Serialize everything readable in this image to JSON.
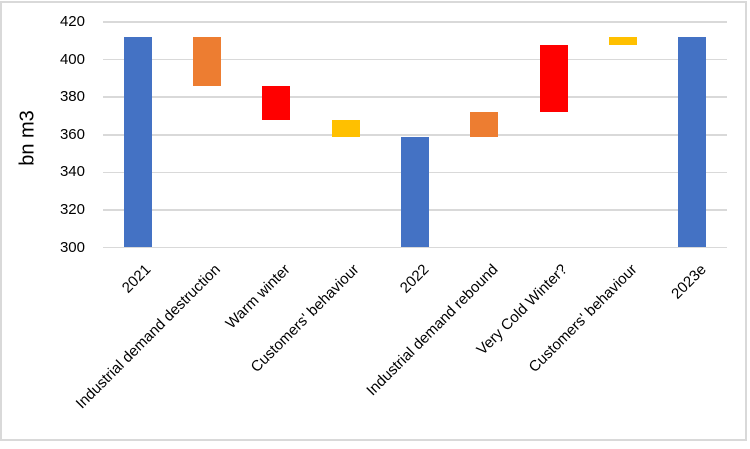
{
  "figure": {
    "background_color": "#FFFFFF",
    "frame_border_color": "#D9D9D9"
  },
  "chart_data": {
    "type": "bar",
    "subtype": "waterfall",
    "title": "",
    "xlabel": "",
    "ylabel": "bn m3",
    "ylim": [
      300,
      420
    ],
    "yticks": [
      300,
      320,
      340,
      360,
      380,
      400,
      420
    ],
    "grid": true,
    "gridline_color": "#D9D9D9",
    "axis_text_color": "#000000",
    "legend": "none",
    "categories": [
      "2021",
      "Industrial demand destruction",
      "Warm winter",
      "Customers' behaviour",
      "2022",
      "Industrial demand rebound",
      "Very Cold Winter?",
      "Customers' behaviour",
      "2023e"
    ],
    "bars": [
      {
        "category": "2021",
        "from": 300,
        "to": 412,
        "color": "#4472C4",
        "role": "total"
      },
      {
        "category": "Industrial demand destruction",
        "from": 412,
        "to": 386,
        "color": "#ED7D31",
        "role": "decrease"
      },
      {
        "category": "Warm winter",
        "from": 386,
        "to": 368,
        "color": "#FF0000",
        "role": "decrease"
      },
      {
        "category": "Customers' behaviour",
        "from": 368,
        "to": 359,
        "color": "#FFC000",
        "role": "decrease"
      },
      {
        "category": "2022",
        "from": 300,
        "to": 359,
        "color": "#4472C4",
        "role": "total"
      },
      {
        "category": "Industrial demand rebound",
        "from": 359,
        "to": 372,
        "color": "#ED7D31",
        "role": "increase"
      },
      {
        "category": "Very Cold Winter?",
        "from": 372,
        "to": 408,
        "color": "#FF0000",
        "role": "increase"
      },
      {
        "category": "Customers' behaviour",
        "from": 408,
        "to": 412,
        "color": "#FFC000",
        "role": "increase"
      },
      {
        "category": "2023e",
        "from": 300,
        "to": 412,
        "color": "#4472C4",
        "role": "total"
      }
    ]
  }
}
